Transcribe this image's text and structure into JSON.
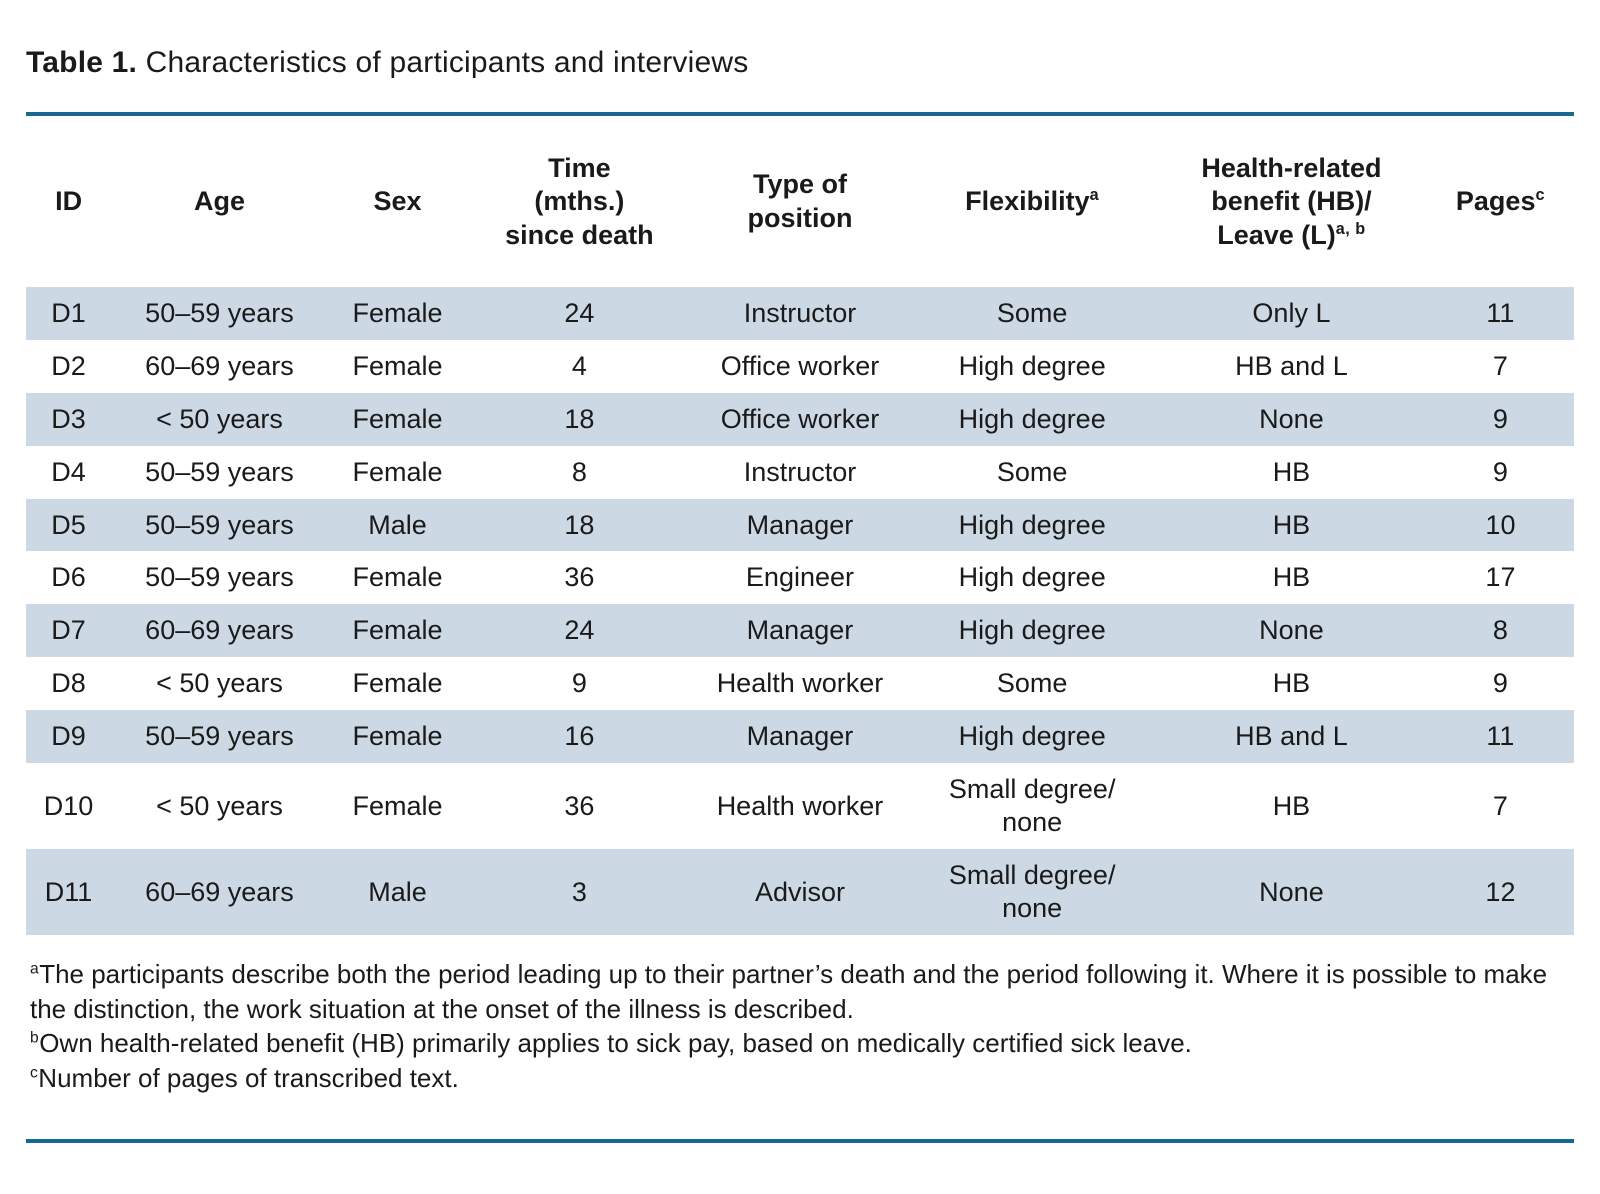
{
  "title": {
    "label": "Table 1.",
    "text": " Characteristics of participants and interviews"
  },
  "colors": {
    "rule": "#17678f",
    "stripe": "#ccd9e5",
    "text": "#1a1a1a"
  },
  "table": {
    "columns": [
      {
        "key": "id",
        "label": "ID",
        "sup": "",
        "width": "5.5%"
      },
      {
        "key": "age",
        "label": "Age",
        "sup": "",
        "width": "14%"
      },
      {
        "key": "sex",
        "label": "Sex",
        "sup": "",
        "width": "9%"
      },
      {
        "key": "time",
        "label": "Time\n(mths.)\nsince death",
        "sup": "",
        "width": "14.5%"
      },
      {
        "key": "position",
        "label": "Type of\nposition",
        "sup": "",
        "width": "14%"
      },
      {
        "key": "flexibility",
        "label": "Flexibility",
        "sup": "a",
        "width": "16%"
      },
      {
        "key": "benefit",
        "label": "Health-related\nbenefit (HB)/\nLeave (L)",
        "sup": "a, b",
        "width": "17.5%"
      },
      {
        "key": "pages",
        "label": "Pages",
        "sup": "c",
        "width": "9.5%"
      }
    ],
    "rows": [
      {
        "id": "D1",
        "age": "50–59 years",
        "sex": "Female",
        "time": "24",
        "position": "Instructor",
        "flexibility": "Some",
        "benefit": "Only L",
        "pages": "11"
      },
      {
        "id": "D2",
        "age": "60–69 years",
        "sex": "Female",
        "time": "4",
        "position": "Office worker",
        "flexibility": "High degree",
        "benefit": "HB and L",
        "pages": "7"
      },
      {
        "id": "D3",
        "age": "< 50 years",
        "sex": "Female",
        "time": "18",
        "position": "Office worker",
        "flexibility": "High degree",
        "benefit": "None",
        "pages": "9"
      },
      {
        "id": "D4",
        "age": "50–59 years",
        "sex": "Female",
        "time": "8",
        "position": "Instructor",
        "flexibility": "Some",
        "benefit": "HB",
        "pages": "9"
      },
      {
        "id": "D5",
        "age": "50–59 years",
        "sex": "Male",
        "time": "18",
        "position": "Manager",
        "flexibility": "High degree",
        "benefit": "HB",
        "pages": "10"
      },
      {
        "id": "D6",
        "age": "50–59 years",
        "sex": "Female",
        "time": "36",
        "position": "Engineer",
        "flexibility": "High degree",
        "benefit": "HB",
        "pages": "17"
      },
      {
        "id": "D7",
        "age": "60–69 years",
        "sex": "Female",
        "time": "24",
        "position": "Manager",
        "flexibility": "High degree",
        "benefit": "None",
        "pages": "8"
      },
      {
        "id": "D8",
        "age": "< 50 years",
        "sex": "Female",
        "time": "9",
        "position": "Health worker",
        "flexibility": "Some",
        "benefit": "HB",
        "pages": "9"
      },
      {
        "id": "D9",
        "age": "50–59 years",
        "sex": "Female",
        "time": "16",
        "position": "Manager",
        "flexibility": "High degree",
        "benefit": "HB and L",
        "pages": "11"
      },
      {
        "id": "D10",
        "age": "< 50 years",
        "sex": "Female",
        "time": "36",
        "position": "Health worker",
        "flexibility": "Small degree/\nnone",
        "benefit": "HB",
        "pages": "7"
      },
      {
        "id": "D11",
        "age": "60–69 years",
        "sex": "Male",
        "time": "3",
        "position": "Advisor",
        "flexibility": "Small degree/\nnone",
        "benefit": "None",
        "pages": "12"
      }
    ]
  },
  "footnotes": [
    {
      "sup": "a",
      "text": "The participants describe both the period leading up to their partner’s death and the period following it. Where it is possible to make the distinction, the work situation at the onset of the illness is described."
    },
    {
      "sup": "b",
      "text": "Own health-related benefit (HB) primarily applies to sick pay, based on medically certified sick leave."
    },
    {
      "sup": "c",
      "text": "Number of pages of transcribed text."
    }
  ]
}
